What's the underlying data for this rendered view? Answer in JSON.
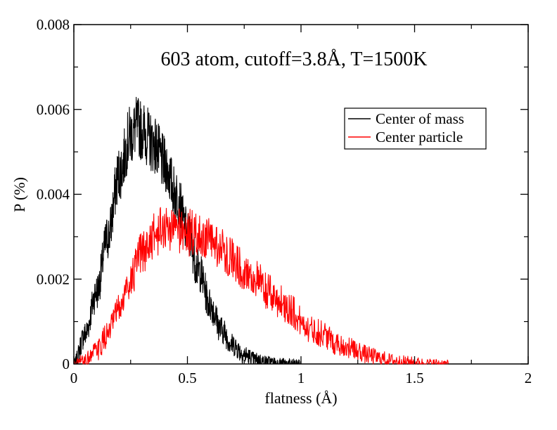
{
  "chart_data": {
    "type": "line",
    "title": "603 atom, cutoff=3.8Å, T=1500K",
    "xlabel": "flatness (Å)",
    "ylabel": "P (%)",
    "xlim": [
      0,
      2
    ],
    "ylim": [
      0,
      0.008
    ],
    "x_ticks": [
      0,
      0.5,
      1,
      1.5,
      2
    ],
    "x_tick_labels": [
      "0",
      "0.5",
      "1",
      "1.5",
      "2"
    ],
    "y_ticks": [
      0,
      0.002,
      0.004,
      0.006,
      0.008
    ],
    "y_tick_labels": [
      "0",
      "0.002",
      "0.004",
      "0.006",
      "0.008"
    ],
    "grid": false,
    "legend_position": "top-right",
    "series": [
      {
        "name": "Center of mass",
        "color": "#000000",
        "x": [
          0.0,
          0.05,
          0.1,
          0.15,
          0.2,
          0.25,
          0.28,
          0.3,
          0.35,
          0.4,
          0.45,
          0.5,
          0.55,
          0.6,
          0.65,
          0.7,
          0.75,
          0.8,
          0.85,
          0.9,
          0.95,
          1.0
        ],
        "y": [
          0.0,
          0.0007,
          0.0017,
          0.003,
          0.0045,
          0.0054,
          0.0056,
          0.0055,
          0.0052,
          0.0047,
          0.004,
          0.0031,
          0.0022,
          0.0014,
          0.0008,
          0.00045,
          0.00022,
          0.0001,
          5e-05,
          2e-05,
          1e-05,
          0.0
        ]
      },
      {
        "name": "Center particle",
        "color": "#ff0000",
        "x": [
          0.0,
          0.05,
          0.1,
          0.15,
          0.2,
          0.25,
          0.3,
          0.35,
          0.4,
          0.45,
          0.5,
          0.55,
          0.6,
          0.65,
          0.7,
          0.75,
          0.8,
          0.85,
          0.9,
          0.95,
          1.0,
          1.05,
          1.1,
          1.15,
          1.2,
          1.25,
          1.3,
          1.35,
          1.4,
          1.45,
          1.5,
          1.55,
          1.6,
          1.65
        ],
        "y": [
          0.0,
          0.0001,
          0.0003,
          0.0007,
          0.0013,
          0.002,
          0.0026,
          0.003,
          0.0032,
          0.0032,
          0.0031,
          0.003,
          0.0029,
          0.0027,
          0.0025,
          0.0022,
          0.002,
          0.0017,
          0.0015,
          0.0013,
          0.001,
          0.0008,
          0.0007,
          0.0005,
          0.0004,
          0.0003,
          0.0002,
          0.00013,
          8e-05,
          5e-05,
          3e-05,
          1e-05,
          1e-05,
          0.0
        ]
      }
    ]
  }
}
